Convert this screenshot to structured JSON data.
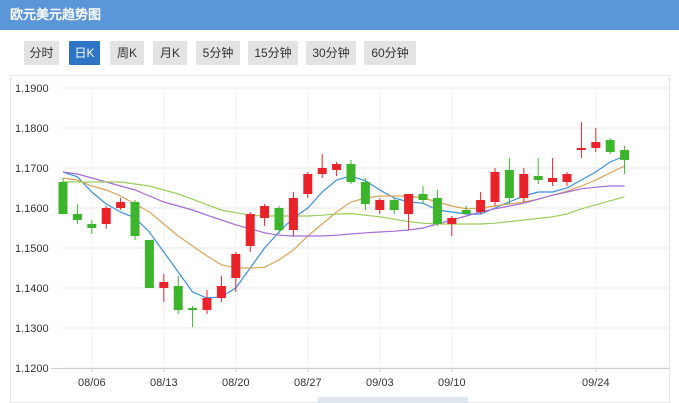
{
  "header": {
    "title": "欧元美元趋势图"
  },
  "tabs": [
    {
      "label": "分时",
      "active": false
    },
    {
      "label": "日K",
      "active": true
    },
    {
      "label": "周K",
      "active": false
    },
    {
      "label": "月K",
      "active": false
    },
    {
      "label": "5分钟",
      "active": false
    },
    {
      "label": "15分钟",
      "active": false
    },
    {
      "label": "30分钟",
      "active": false
    },
    {
      "label": "60分钟",
      "active": false
    }
  ],
  "colors": {
    "header_bg": "#5b96d8",
    "tab_active": "#2f75c6",
    "up": "#e8232a",
    "down": "#3cb52d",
    "ma5": "#3b8ee0",
    "ma10": "#d7a45a",
    "ma20": "#a56bd6",
    "ma30": "#9ccc5c"
  },
  "chart_data": {
    "type": "candlestick",
    "yticks": [
      "1.1900",
      "1.1800",
      "1.1700",
      "1.1600",
      "1.1500",
      "1.1400",
      "1.1300",
      "1.1200"
    ],
    "ylim": [
      1.12,
      1.19
    ],
    "xticks": [
      {
        "label": "08/06",
        "index": 2
      },
      {
        "label": "08/13",
        "index": 7
      },
      {
        "label": "08/20",
        "index": 12
      },
      {
        "label": "08/27",
        "index": 17
      },
      {
        "label": "09/03",
        "index": 22
      },
      {
        "label": "09/10",
        "index": 27
      },
      {
        "label": "09/24",
        "index": 37
      }
    ],
    "candles": [
      {
        "open": 1.1665,
        "high": 1.1675,
        "low": 1.1585,
        "close": 1.1585
      },
      {
        "open": 1.1585,
        "high": 1.161,
        "low": 1.156,
        "close": 1.157
      },
      {
        "open": 1.156,
        "high": 1.157,
        "low": 1.1535,
        "close": 1.155
      },
      {
        "open": 1.156,
        "high": 1.1605,
        "low": 1.1548,
        "close": 1.16
      },
      {
        "open": 1.16,
        "high": 1.1625,
        "low": 1.1595,
        "close": 1.1615
      },
      {
        "open": 1.1615,
        "high": 1.162,
        "low": 1.152,
        "close": 1.153
      },
      {
        "open": 1.152,
        "high": 1.152,
        "low": 1.14,
        "close": 1.14
      },
      {
        "open": 1.14,
        "high": 1.1435,
        "low": 1.1365,
        "close": 1.1415
      },
      {
        "open": 1.1405,
        "high": 1.143,
        "low": 1.1335,
        "close": 1.1345
      },
      {
        "open": 1.135,
        "high": 1.1355,
        "low": 1.1302,
        "close": 1.1345
      },
      {
        "open": 1.1345,
        "high": 1.1395,
        "low": 1.1335,
        "close": 1.1375
      },
      {
        "open": 1.1375,
        "high": 1.143,
        "low": 1.1365,
        "close": 1.1405
      },
      {
        "open": 1.1425,
        "high": 1.149,
        "low": 1.139,
        "close": 1.1485
      },
      {
        "open": 1.1505,
        "high": 1.159,
        "low": 1.149,
        "close": 1.1585
      },
      {
        "open": 1.1575,
        "high": 1.161,
        "low": 1.1555,
        "close": 1.1605
      },
      {
        "open": 1.16,
        "high": 1.1605,
        "low": 1.1535,
        "close": 1.1545
      },
      {
        "open": 1.1545,
        "high": 1.164,
        "low": 1.153,
        "close": 1.1625
      },
      {
        "open": 1.1635,
        "high": 1.169,
        "low": 1.1625,
        "close": 1.1685
      },
      {
        "open": 1.1685,
        "high": 1.1735,
        "low": 1.1675,
        "close": 1.17
      },
      {
        "open": 1.1695,
        "high": 1.1715,
        "low": 1.168,
        "close": 1.171
      },
      {
        "open": 1.171,
        "high": 1.172,
        "low": 1.166,
        "close": 1.1665
      },
      {
        "open": 1.1665,
        "high": 1.1675,
        "low": 1.1595,
        "close": 1.161
      },
      {
        "open": 1.1595,
        "high": 1.1625,
        "low": 1.1585,
        "close": 1.162
      },
      {
        "open": 1.162,
        "high": 1.1625,
        "low": 1.1585,
        "close": 1.1595
      },
      {
        "open": 1.1585,
        "high": 1.1635,
        "low": 1.1545,
        "close": 1.1635
      },
      {
        "open": 1.1635,
        "high": 1.1655,
        "low": 1.161,
        "close": 1.162
      },
      {
        "open": 1.1625,
        "high": 1.1645,
        "low": 1.1555,
        "close": 1.156
      },
      {
        "open": 1.156,
        "high": 1.158,
        "low": 1.153,
        "close": 1.1575
      },
      {
        "open": 1.1595,
        "high": 1.1605,
        "low": 1.1585,
        "close": 1.1585
      },
      {
        "open": 1.159,
        "high": 1.164,
        "low": 1.1585,
        "close": 1.162
      },
      {
        "open": 1.1615,
        "high": 1.17,
        "low": 1.1605,
        "close": 1.169
      },
      {
        "open": 1.1695,
        "high": 1.1725,
        "low": 1.161,
        "close": 1.1625
      },
      {
        "open": 1.1625,
        "high": 1.17,
        "low": 1.1615,
        "close": 1.1685
      },
      {
        "open": 1.168,
        "high": 1.1725,
        "low": 1.166,
        "close": 1.167
      },
      {
        "open": 1.1665,
        "high": 1.1725,
        "low": 1.1655,
        "close": 1.1675
      },
      {
        "open": 1.1665,
        "high": 1.169,
        "low": 1.1655,
        "close": 1.1685
      },
      {
        "open": 1.1745,
        "high": 1.1815,
        "low": 1.1725,
        "close": 1.175
      },
      {
        "open": 1.175,
        "high": 1.18,
        "low": 1.174,
        "close": 1.1765
      },
      {
        "open": 1.177,
        "high": 1.1775,
        "low": 1.1735,
        "close": 1.174
      },
      {
        "open": 1.1745,
        "high": 1.1755,
        "low": 1.1685,
        "close": 1.172
      }
    ],
    "series": [
      {
        "key": "ma5",
        "values": [
          1.169,
          1.1678,
          1.164,
          1.161,
          1.159,
          1.1575,
          1.154,
          1.149,
          1.144,
          1.139,
          1.1375,
          1.1378,
          1.14,
          1.145,
          1.15,
          1.154,
          1.1575,
          1.16,
          1.164,
          1.167,
          1.168,
          1.1668,
          1.1645,
          1.1625,
          1.1615,
          1.1612,
          1.1595,
          1.159,
          1.1585,
          1.1585,
          1.16,
          1.1615,
          1.163,
          1.164,
          1.164,
          1.165,
          1.167,
          1.169,
          1.1715,
          1.173
        ]
      },
      {
        "key": "ma10",
        "values": [
          1.1675,
          1.167,
          1.1655,
          1.1645,
          1.163,
          1.161,
          1.159,
          1.156,
          1.153,
          1.1505,
          1.148,
          1.1458,
          1.145,
          1.145,
          1.1452,
          1.147,
          1.1495,
          1.153,
          1.156,
          1.159,
          1.1615,
          1.1625,
          1.163,
          1.163,
          1.163,
          1.1625,
          1.1615,
          1.1605,
          1.1598,
          1.16,
          1.1605,
          1.161,
          1.1615,
          1.1622,
          1.1632,
          1.1642,
          1.1655,
          1.167,
          1.1688,
          1.1705
        ]
      },
      {
        "key": "ma20",
        "values": [
          1.169,
          1.1685,
          1.1675,
          1.1665,
          1.1655,
          1.1645,
          1.163,
          1.1615,
          1.1605,
          1.1595,
          1.1582,
          1.157,
          1.1558,
          1.1548,
          1.1538,
          1.1532,
          1.153,
          1.153,
          1.153,
          1.1532,
          1.1535,
          1.1538,
          1.154,
          1.1542,
          1.1545,
          1.155,
          1.156,
          1.157,
          1.158,
          1.159,
          1.1598,
          1.1605,
          1.1612,
          1.1622,
          1.1632,
          1.164,
          1.1648,
          1.1652,
          1.1655,
          1.1655
        ]
      },
      {
        "key": "ma30",
        "values": [
          1.1665,
          1.1665,
          1.1665,
          1.1665,
          1.1665,
          1.166,
          1.1655,
          1.1645,
          1.1635,
          1.1622,
          1.1608,
          1.1595,
          1.1588,
          1.1582,
          1.158,
          1.158,
          1.158,
          1.158,
          1.1582,
          1.1585,
          1.1586,
          1.1582,
          1.1578,
          1.1572,
          1.1566,
          1.1562,
          1.156,
          1.156,
          1.156,
          1.156,
          1.1562,
          1.1566,
          1.157,
          1.1574,
          1.1578,
          1.1585,
          1.1598,
          1.1608,
          1.1618,
          1.1628
        ]
      }
    ]
  }
}
